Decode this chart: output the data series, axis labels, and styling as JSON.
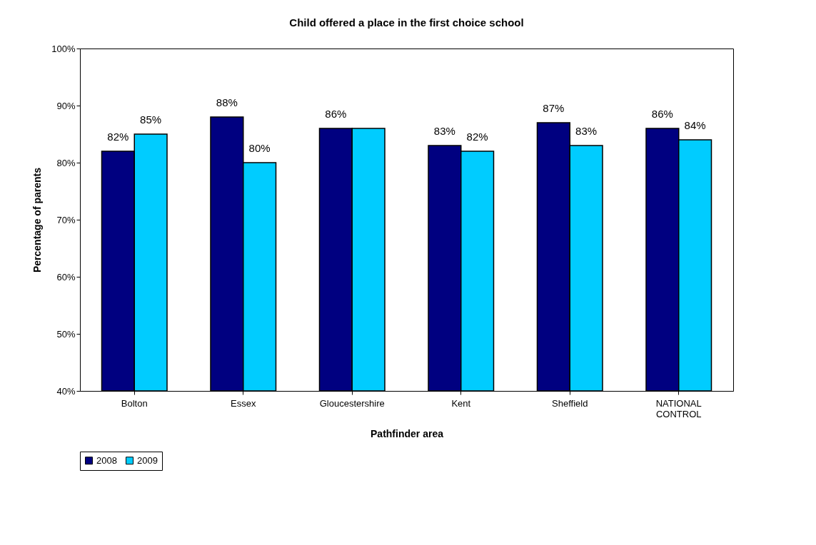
{
  "chart_data": {
    "type": "bar",
    "title": "Child offered a place in the first choice school",
    "xlabel": "Pathfinder area",
    "ylabel": "Percentage of parents",
    "categories": [
      "Bolton",
      "Essex",
      "Gloucestershire",
      "Kent",
      "Sheffield",
      "NATIONAL CONTROL"
    ],
    "series": [
      {
        "name": "2008",
        "color": "#000080",
        "values": [
          82,
          88,
          86,
          83,
          87,
          86
        ],
        "value_labels": [
          "82%",
          "88%",
          "86%",
          "83%",
          "87%",
          "86%"
        ]
      },
      {
        "name": "2009",
        "color": "#00ccff",
        "values": [
          85,
          80,
          86,
          82,
          83,
          84
        ],
        "value_labels": [
          "85%",
          "80%",
          null,
          "82%",
          "83%",
          "84%"
        ]
      }
    ],
    "ylim": [
      40,
      100
    ],
    "yticks": [
      {
        "value": 40,
        "label": "40%"
      },
      {
        "value": 50,
        "label": "50%"
      },
      {
        "value": 60,
        "label": "60%"
      },
      {
        "value": 70,
        "label": "70%"
      },
      {
        "value": 80,
        "label": "80%"
      },
      {
        "value": 90,
        "label": "90%"
      },
      {
        "value": 100,
        "label": "100%"
      }
    ],
    "grid": false,
    "legend": "bottom"
  }
}
